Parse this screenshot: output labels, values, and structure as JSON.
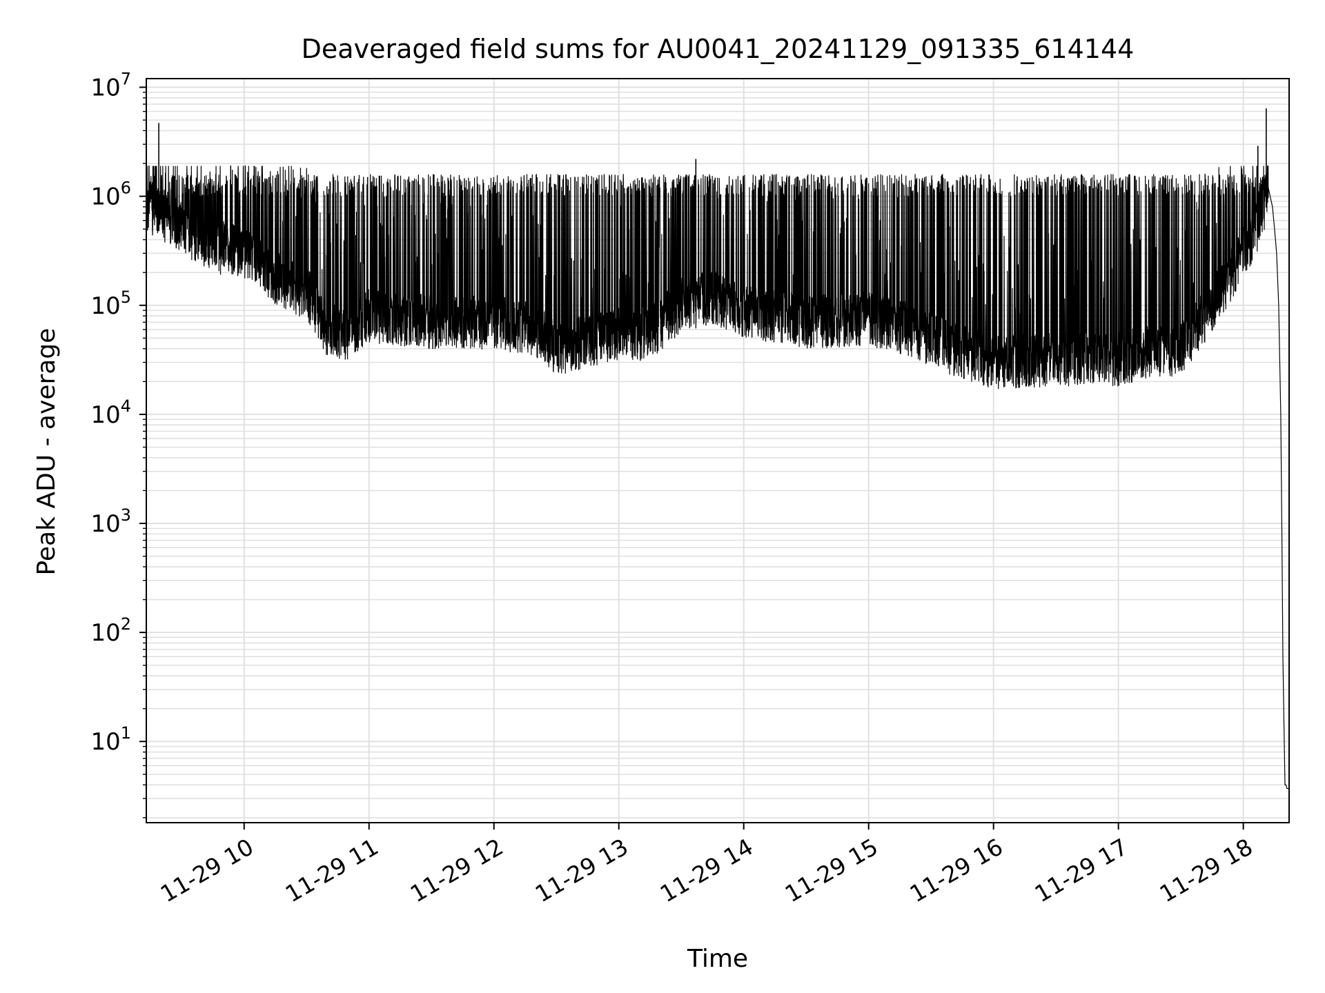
{
  "chart_data": {
    "type": "line",
    "title": "Deaveraged field sums for AU0041_20241129_091335_614144",
    "xlabel": "Time",
    "ylabel": "Peak ADU - average",
    "yscale": "log",
    "ylim": [
      1.8,
      12000000
    ],
    "xlim": [
      "2024-11-29 09:13",
      "2024-11-29 18:22"
    ],
    "grid": true,
    "grid_color": "#e0e0e0",
    "line_color": "#000000",
    "x_ticks": [
      {
        "t": "2024-11-29 10:00",
        "label": "11-29 10"
      },
      {
        "t": "2024-11-29 11:00",
        "label": "11-29 11"
      },
      {
        "t": "2024-11-29 12:00",
        "label": "11-29 12"
      },
      {
        "t": "2024-11-29 13:00",
        "label": "11-29 13"
      },
      {
        "t": "2024-11-29 14:00",
        "label": "11-29 14"
      },
      {
        "t": "2024-11-29 15:00",
        "label": "11-29 15"
      },
      {
        "t": "2024-11-29 16:00",
        "label": "11-29 16"
      },
      {
        "t": "2024-11-29 17:00",
        "label": "11-29 17"
      },
      {
        "t": "2024-11-29 18:00",
        "label": "11-29 18"
      }
    ],
    "y_ticks": [
      {
        "value": 10,
        "base": "10",
        "exp": "1"
      },
      {
        "value": 100,
        "base": "10",
        "exp": "2"
      },
      {
        "value": 1000,
        "base": "10",
        "exp": "3"
      },
      {
        "value": 10000,
        "base": "10",
        "exp": "4"
      },
      {
        "value": 100000,
        "base": "10",
        "exp": "5"
      },
      {
        "value": 1000000,
        "base": "10",
        "exp": "6"
      },
      {
        "value": 10000000,
        "base": "10",
        "exp": "7"
      }
    ],
    "series": [
      {
        "baseline": {
          "x": [
            "2024-11-29 09:13",
            "2024-11-29 09:20",
            "2024-11-29 09:30",
            "2024-11-29 09:45",
            "2024-11-29 10:00",
            "2024-11-29 10:15",
            "2024-11-29 10:30",
            "2024-11-29 10:40",
            "2024-11-29 10:50",
            "2024-11-29 11:00",
            "2024-11-29 11:30",
            "2024-11-29 12:00",
            "2024-11-29 12:20",
            "2024-11-29 12:30",
            "2024-11-29 13:00",
            "2024-11-29 13:15",
            "2024-11-29 13:30",
            "2024-11-29 13:45",
            "2024-11-29 14:00",
            "2024-11-29 14:30",
            "2024-11-29 15:00",
            "2024-11-29 15:20",
            "2024-11-29 15:40",
            "2024-11-29 16:00",
            "2024-11-29 16:30",
            "2024-11-29 17:00",
            "2024-11-29 17:15",
            "2024-11-29 17:30",
            "2024-11-29 17:45",
            "2024-11-29 18:00",
            "2024-11-29 18:08",
            "2024-11-29 18:12"
          ],
          "y": [
            800000,
            700000,
            500000,
            350000,
            300000,
            180000,
            130000,
            60000,
            55000,
            80000,
            70000,
            70000,
            60000,
            40000,
            55000,
            55000,
            100000,
            120000,
            90000,
            70000,
            75000,
            60000,
            40000,
            30000,
            32000,
            32000,
            38000,
            40000,
            100000,
            300000,
            600000,
            1200000
          ]
        },
        "tail": {
          "x": [
            "2024-11-29 18:12",
            "2024-11-29 18:14",
            "2024-11-29 18:15",
            "2024-11-29 18:16",
            "2024-11-29 18:17",
            "2024-11-29 18:18",
            "2024-11-29 18:18:30",
            "2024-11-29 18:19",
            "2024-11-29 18:19:30",
            "2024-11-29 18:20",
            "2024-11-29 18:20:30",
            "2024-11-29 18:21",
            "2024-11-29 18:22"
          ],
          "y": [
            1200000,
            800000,
            500000,
            300000,
            100000,
            10000,
            1000,
            60,
            15,
            4,
            4,
            3.7,
            3.7
          ]
        },
        "spikes": [
          {
            "x": "2024-11-29 09:19",
            "y": 4700000
          },
          {
            "x": "2024-11-29 13:37",
            "y": 2200000
          },
          {
            "x": "2024-11-29 18:07",
            "y": 2900000
          },
          {
            "x": "2024-11-29 18:11",
            "y": 6400000
          }
        ]
      }
    ]
  }
}
